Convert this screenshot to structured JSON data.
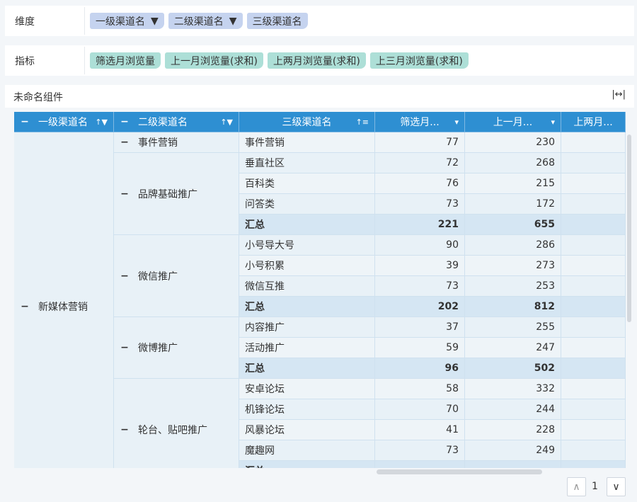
{
  "dimension_panel": {
    "label": "维度",
    "chips": [
      {
        "text": "一级渠道名",
        "filter": true
      },
      {
        "text": "二级渠道名",
        "filter": true
      },
      {
        "text": "三级渠道名",
        "filter": false
      }
    ]
  },
  "metric_panel": {
    "label": "指标",
    "chips": [
      "筛选月浏览量",
      "上一月浏览量(求和)",
      "上两月浏览量(求和)",
      "上三月浏览量(求和)"
    ]
  },
  "component": {
    "title": "未命名组件"
  },
  "table": {
    "headers": [
      "一级渠道名",
      "二级渠道名",
      "三级渠道名",
      "筛选月...",
      "上一月...",
      "上两月..."
    ],
    "level1": [
      {
        "name": "新媒体营销",
        "rows": 17
      }
    ],
    "level2": [
      {
        "name": "事件营销",
        "rows": 1
      },
      {
        "name": "品牌基础推广",
        "rows": 4
      },
      {
        "name": "微信推广",
        "rows": 4
      },
      {
        "name": "微博推广",
        "rows": 3
      },
      {
        "name": "轮台、贴吧推广",
        "rows": 5
      }
    ],
    "rows": [
      {
        "name": "事件营销",
        "v1": 77,
        "v2": 230
      },
      {
        "name": "垂直社区",
        "v1": 72,
        "v2": 268
      },
      {
        "name": "百科类",
        "v1": 76,
        "v2": 215
      },
      {
        "name": "问答类",
        "v1": 73,
        "v2": 172
      },
      {
        "name": "汇总",
        "v1": 221,
        "v2": 655,
        "subtotal": true
      },
      {
        "name": "小号导大号",
        "v1": 90,
        "v2": 286
      },
      {
        "name": "小号积累",
        "v1": 39,
        "v2": 273
      },
      {
        "name": "微信互推",
        "v1": 73,
        "v2": 253
      },
      {
        "name": "汇总",
        "v1": 202,
        "v2": 812,
        "subtotal": true
      },
      {
        "name": "内容推广",
        "v1": 37,
        "v2": 255
      },
      {
        "name": "活动推广",
        "v1": 59,
        "v2": 247
      },
      {
        "name": "汇总",
        "v1": 96,
        "v2": 502,
        "subtotal": true
      },
      {
        "name": "安卓论坛",
        "v1": 58,
        "v2": 332
      },
      {
        "name": "机锋论坛",
        "v1": 70,
        "v2": 244
      },
      {
        "name": "风暴论坛",
        "v1": 41,
        "v2": 228
      },
      {
        "name": "魔趣网",
        "v1": 73,
        "v2": 249
      },
      {
        "name": "汇总",
        "v1": null,
        "v2": null,
        "subtotal": true
      }
    ]
  },
  "pagination": {
    "page": "1"
  },
  "colors": {
    "header": "#2e8fd2",
    "dimension_chip": "#c5d3ef",
    "metric_chip": "#addfd7"
  }
}
